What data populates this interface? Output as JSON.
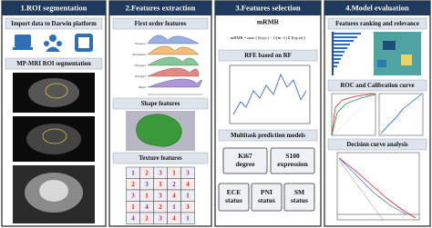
{
  "panels": [
    {
      "title": "1.ROI segmentation",
      "sections": [
        "Import data to Darwin platform",
        "MP-MRI ROI segmentation"
      ]
    },
    {
      "title": "2.Features extraction",
      "sections": [
        "First order features",
        "Shape features",
        "Texture features"
      ],
      "ridge_labels": [
        "Variance",
        "Maximum",
        "Energy1",
        "Energy2",
        "Mean"
      ],
      "texture_matrix": [
        [
          "1",
          "2",
          "3",
          "1",
          "3"
        ],
        [
          "2",
          "3",
          "1",
          "2",
          "4"
        ],
        [
          "3",
          "1",
          "3",
          "4",
          "1"
        ],
        [
          "1",
          "4",
          "2",
          "1",
          "3"
        ],
        [
          "4",
          "2",
          "3",
          "4",
          "1"
        ]
      ]
    },
    {
      "title": "3.Features selection",
      "sections": [
        "mRMR",
        "RFE based on RF",
        "Multitask prediction models"
      ],
      "formula": "mRMR = max [ I(xj;c) − 1/(m−1) Σ I(xj;xi) ]",
      "tasks": [
        [
          "Ki67",
          "degree"
        ],
        [
          "S100",
          "expression"
        ],
        [
          "ECE",
          "status"
        ],
        [
          "PNI",
          "status"
        ],
        [
          "SM",
          "status"
        ]
      ]
    },
    {
      "title": "4.Model evaluation",
      "sections": [
        "Features ranking and relevance",
        "ROC and Calibration curve",
        "Decision curve analysis"
      ]
    }
  ]
}
